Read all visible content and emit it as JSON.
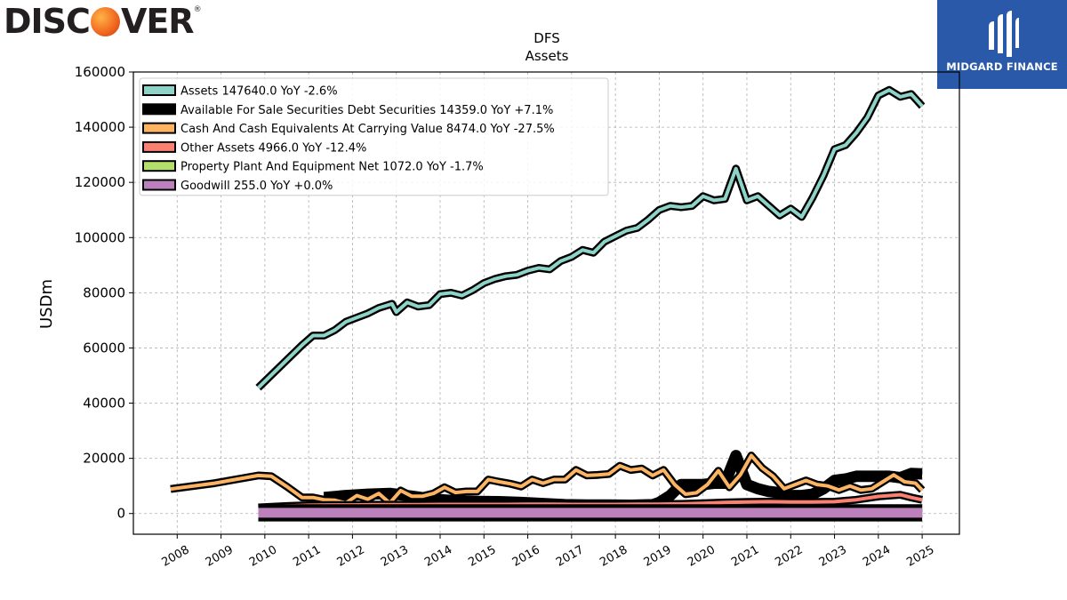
{
  "branding": {
    "left_logo": "DISCOVER",
    "right_logo": "MIDGARD FINANCE"
  },
  "chart_data": {
    "type": "line",
    "title": "DFS",
    "subtitle": "Assets",
    "ylabel": "USDm",
    "xlabel": "",
    "ylim": [
      -7500,
      160000
    ],
    "xlim": [
      2007.0,
      2025.85
    ],
    "yticks": [
      0,
      20000,
      40000,
      60000,
      80000,
      100000,
      120000,
      140000,
      160000
    ],
    "xticks": [
      "2008",
      "2009",
      "2010",
      "2011",
      "2012",
      "2013",
      "2014",
      "2015",
      "2016",
      "2017",
      "2018",
      "2019",
      "2020",
      "2021",
      "2022",
      "2023",
      "2024",
      "2025"
    ],
    "grid": true,
    "legend_position": "top-left",
    "series": [
      {
        "name": "Assets",
        "legend": "Assets  147640.0 YoY -2.6%",
        "color": "#8dd3c7",
        "width": 4,
        "outline": 8,
        "points": [
          [
            2009.85,
            45600
          ],
          [
            2010.85,
            61000
          ],
          [
            2011.1,
            64500
          ],
          [
            2011.35,
            64500
          ],
          [
            2011.6,
            66500
          ],
          [
            2011.85,
            69500
          ],
          [
            2012.1,
            71000
          ],
          [
            2012.35,
            72500
          ],
          [
            2012.6,
            74500
          ],
          [
            2012.9,
            76000
          ],
          [
            2013.0,
            73000
          ],
          [
            2013.25,
            76500
          ],
          [
            2013.5,
            75000
          ],
          [
            2013.75,
            75500
          ],
          [
            2014.0,
            79500
          ],
          [
            2014.25,
            80000
          ],
          [
            2014.5,
            79000
          ],
          [
            2014.75,
            81000
          ],
          [
            2015.0,
            83500
          ],
          [
            2015.25,
            85000
          ],
          [
            2015.5,
            86000
          ],
          [
            2015.75,
            86500
          ],
          [
            2016.0,
            88000
          ],
          [
            2016.25,
            89000
          ],
          [
            2016.5,
            88500
          ],
          [
            2016.75,
            91500
          ],
          [
            2017.0,
            93000
          ],
          [
            2017.25,
            95500
          ],
          [
            2017.5,
            94500
          ],
          [
            2017.75,
            98500
          ],
          [
            2018.0,
            100500
          ],
          [
            2018.25,
            102500
          ],
          [
            2018.5,
            103500
          ],
          [
            2018.75,
            106500
          ],
          [
            2019.0,
            110000
          ],
          [
            2019.25,
            111500
          ],
          [
            2019.5,
            111000
          ],
          [
            2019.75,
            111500
          ],
          [
            2020.0,
            115000
          ],
          [
            2020.25,
            113500
          ],
          [
            2020.5,
            114000
          ],
          [
            2020.75,
            125000
          ],
          [
            2021.0,
            113500
          ],
          [
            2021.25,
            115000
          ],
          [
            2021.5,
            111500
          ],
          [
            2021.75,
            108000
          ],
          [
            2022.0,
            110500
          ],
          [
            2022.25,
            107500
          ],
          [
            2022.5,
            114500
          ],
          [
            2022.75,
            122500
          ],
          [
            2023.0,
            132000
          ],
          [
            2023.25,
            133500
          ],
          [
            2023.5,
            138000
          ],
          [
            2023.75,
            143500
          ],
          [
            2024.0,
            151500
          ],
          [
            2024.25,
            153500
          ],
          [
            2024.5,
            151000
          ],
          [
            2024.75,
            152000
          ],
          [
            2025.0,
            147640
          ]
        ]
      },
      {
        "name": "Available For Sale Securities Debt Securities",
        "legend": "Available For Sale Securities Debt Securities  14359.0 YoY +7.1%",
        "color": "#000000",
        "width": 8,
        "outline": 8,
        "points": [
          [
            2011.35,
            5800
          ],
          [
            2011.85,
            6500
          ],
          [
            2012.35,
            7000
          ],
          [
            2012.85,
            7300
          ],
          [
            2013.35,
            6300
          ],
          [
            2013.85,
            5200
          ],
          [
            2014.35,
            4600
          ],
          [
            2014.85,
            4400
          ],
          [
            2015.35,
            4300
          ],
          [
            2015.85,
            4000
          ],
          [
            2016.35,
            3600
          ],
          [
            2016.85,
            3200
          ],
          [
            2017.35,
            3100
          ],
          [
            2017.85,
            3100
          ],
          [
            2018.35,
            3000
          ],
          [
            2018.85,
            3200
          ],
          [
            2019.0,
            4000
          ],
          [
            2019.25,
            6500
          ],
          [
            2019.5,
            10500
          ],
          [
            2019.75,
            10500
          ],
          [
            2020.0,
            10500
          ],
          [
            2020.25,
            11000
          ],
          [
            2020.5,
            11000
          ],
          [
            2020.75,
            21000
          ],
          [
            2021.0,
            10500
          ],
          [
            2021.25,
            9000
          ],
          [
            2021.5,
            8000
          ],
          [
            2021.75,
            7500
          ],
          [
            2022.0,
            6500
          ],
          [
            2022.25,
            6500
          ],
          [
            2022.5,
            7000
          ],
          [
            2022.75,
            9000
          ],
          [
            2023.0,
            12000
          ],
          [
            2023.25,
            12500
          ],
          [
            2023.5,
            13500
          ],
          [
            2023.75,
            13500
          ],
          [
            2024.0,
            13500
          ],
          [
            2024.25,
            13500
          ],
          [
            2024.5,
            13000
          ],
          [
            2024.75,
            14500
          ],
          [
            2025.0,
            14359
          ]
        ]
      },
      {
        "name": "Cash And Cash Equivalents At Carrying Value",
        "legend": "Cash And Cash Equivalents At Carrying Value  8474.0 YoY -27.5%",
        "color": "#fdb462",
        "width": 4,
        "outline": 8,
        "points": [
          [
            2007.85,
            8900
          ],
          [
            2008.85,
            11000
          ],
          [
            2009.85,
            13800
          ],
          [
            2010.15,
            13500
          ],
          [
            2010.5,
            9800
          ],
          [
            2010.85,
            5800
          ],
          [
            2011.1,
            5800
          ],
          [
            2011.35,
            5000
          ],
          [
            2011.6,
            4800
          ],
          [
            2011.85,
            3800
          ],
          [
            2012.1,
            6500
          ],
          [
            2012.35,
            5200
          ],
          [
            2012.6,
            7300
          ],
          [
            2012.85,
            3800
          ],
          [
            2013.1,
            8300
          ],
          [
            2013.35,
            6300
          ],
          [
            2013.6,
            6300
          ],
          [
            2013.85,
            7300
          ],
          [
            2014.1,
            9500
          ],
          [
            2014.35,
            7600
          ],
          [
            2014.6,
            8000
          ],
          [
            2014.85,
            8000
          ],
          [
            2015.1,
            12300
          ],
          [
            2015.35,
            11500
          ],
          [
            2015.6,
            10800
          ],
          [
            2015.85,
            9800
          ],
          [
            2016.1,
            12300
          ],
          [
            2016.35,
            11000
          ],
          [
            2016.6,
            12300
          ],
          [
            2016.85,
            12300
          ],
          [
            2017.1,
            15800
          ],
          [
            2017.35,
            13800
          ],
          [
            2017.6,
            14000
          ],
          [
            2017.85,
            14300
          ],
          [
            2018.1,
            17300
          ],
          [
            2018.35,
            15800
          ],
          [
            2018.6,
            16300
          ],
          [
            2018.85,
            13800
          ],
          [
            2019.1,
            15800
          ],
          [
            2019.35,
            10500
          ],
          [
            2019.6,
            7000
          ],
          [
            2019.85,
            7500
          ],
          [
            2020.1,
            10500
          ],
          [
            2020.35,
            15500
          ],
          [
            2020.6,
            9500
          ],
          [
            2020.85,
            14000
          ],
          [
            2021.1,
            21000
          ],
          [
            2021.35,
            16500
          ],
          [
            2021.6,
            13500
          ],
          [
            2021.85,
            9000
          ],
          [
            2022.1,
            10500
          ],
          [
            2022.35,
            12000
          ],
          [
            2022.6,
            10500
          ],
          [
            2022.85,
            10000
          ],
          [
            2023.1,
            8500
          ],
          [
            2023.35,
            10000
          ],
          [
            2023.6,
            8500
          ],
          [
            2023.85,
            9000
          ],
          [
            2024.1,
            11500
          ],
          [
            2024.35,
            14000
          ],
          [
            2024.6,
            11500
          ],
          [
            2024.85,
            11000
          ],
          [
            2025.0,
            8474
          ]
        ]
      },
      {
        "name": "Other Assets",
        "legend": "Other Assets  4966.0 YoY -12.4%",
        "color": "#fb8072",
        "width": 4,
        "outline": 8,
        "points": [
          [
            2009.85,
            2200
          ],
          [
            2010.5,
            2700
          ],
          [
            2011.0,
            3000
          ],
          [
            2011.5,
            3100
          ],
          [
            2012.0,
            3100
          ],
          [
            2012.5,
            3200
          ],
          [
            2013.0,
            3200
          ],
          [
            2013.5,
            3200
          ],
          [
            2014.0,
            3300
          ],
          [
            2014.5,
            3300
          ],
          [
            2015.0,
            3300
          ],
          [
            2015.5,
            3300
          ],
          [
            2016.0,
            3400
          ],
          [
            2016.5,
            3400
          ],
          [
            2017.0,
            3300
          ],
          [
            2017.5,
            3300
          ],
          [
            2018.0,
            3300
          ],
          [
            2018.5,
            3400
          ],
          [
            2019.0,
            3400
          ],
          [
            2019.5,
            3500
          ],
          [
            2020.0,
            3700
          ],
          [
            2020.5,
            4000
          ],
          [
            2021.0,
            4200
          ],
          [
            2021.5,
            4300
          ],
          [
            2022.0,
            4200
          ],
          [
            2022.5,
            4200
          ],
          [
            2023.0,
            4300
          ],
          [
            2023.5,
            5000
          ],
          [
            2024.0,
            6200
          ],
          [
            2024.5,
            6800
          ],
          [
            2024.75,
            5800
          ],
          [
            2025.0,
            4966
          ]
        ]
      },
      {
        "name": "Property Plant And Equipment Net",
        "legend": "Property Plant And Equipment Net  1072.0 YoY -1.7%",
        "color": "#b3de69",
        "width": 4,
        "outline": 8,
        "points": [
          [
            2009.85,
            500
          ],
          [
            2010.85,
            500
          ],
          [
            2011.85,
            520
          ],
          [
            2012.85,
            560
          ],
          [
            2013.85,
            580
          ],
          [
            2014.85,
            600
          ],
          [
            2015.85,
            620
          ],
          [
            2016.85,
            650
          ],
          [
            2017.85,
            680
          ],
          [
            2018.85,
            720
          ],
          [
            2019.85,
            800
          ],
          [
            2020.85,
            900
          ],
          [
            2021.85,
            950
          ],
          [
            2022.85,
            1000
          ],
          [
            2023.85,
            1050
          ],
          [
            2024.85,
            1090
          ],
          [
            2025.0,
            1072
          ]
        ]
      },
      {
        "name": "Goodwill",
        "legend": "Goodwill  255.0 YoY +0.0%",
        "color": "#bc80bd",
        "width": 11,
        "outline": 14,
        "points": [
          [
            2009.85,
            255
          ],
          [
            2011.85,
            255
          ],
          [
            2013.85,
            255
          ],
          [
            2015.85,
            255
          ],
          [
            2017.85,
            255
          ],
          [
            2019.85,
            255
          ],
          [
            2021.85,
            255
          ],
          [
            2023.85,
            255
          ],
          [
            2025.0,
            255
          ]
        ]
      }
    ]
  }
}
